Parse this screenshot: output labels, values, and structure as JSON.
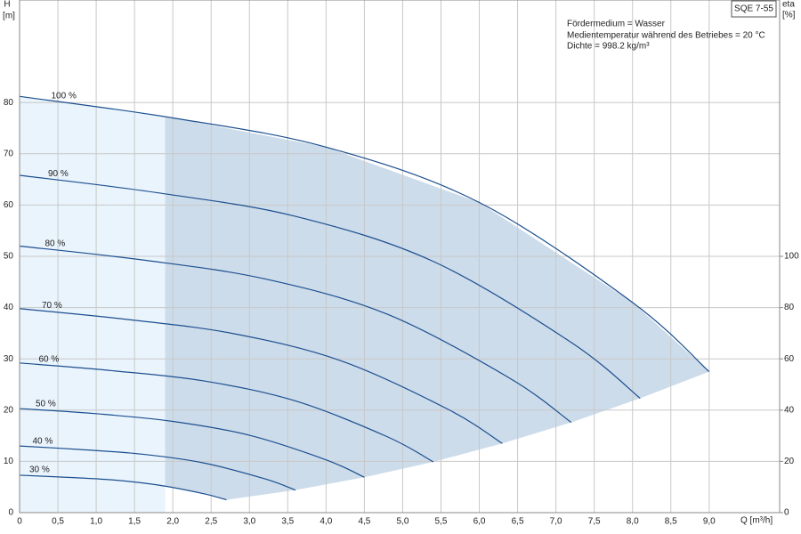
{
  "chart_data": {
    "type": "line",
    "title": "SQE 7-55",
    "y_label": "H",
    "y_unit": "[m]",
    "y2_label": "eta",
    "y2_unit": "[%]",
    "x_label": "Q [m³/h]",
    "annotations": [
      "Fördermedium = Wasser",
      "Medientemperatur während des Betriebes = 20 °C",
      "Dichte = 998.2 kg/m³"
    ],
    "xlim": [
      0,
      9.92
    ],
    "ylim": [
      0,
      100
    ],
    "y2lim": [
      0,
      200
    ],
    "xticks": [
      0,
      {
        "value": 0.5,
        "label": "0,5"
      },
      {
        "value": 1.0,
        "label": "1,0"
      },
      {
        "value": 1.5,
        "label": "1,5"
      },
      {
        "value": 2.0,
        "label": "2,0"
      },
      {
        "value": 2.5,
        "label": "2,5"
      },
      {
        "value": 3.0,
        "label": "3,0"
      },
      {
        "value": 3.5,
        "label": "3,5"
      },
      {
        "value": 4.0,
        "label": "4,0"
      },
      {
        "value": 4.5,
        "label": "4,5"
      },
      {
        "value": 5.0,
        "label": "5,0"
      },
      {
        "value": 5.5,
        "label": "5,5"
      },
      {
        "value": 6.0,
        "label": "6,0"
      },
      {
        "value": 6.5,
        "label": "6,5"
      },
      {
        "value": 7.0,
        "label": "7,0"
      },
      {
        "value": 7.5,
        "label": "7,5"
      },
      {
        "value": 8.0,
        "label": "8,0"
      },
      {
        "value": 8.5,
        "label": "8,5"
      },
      {
        "value": 9.0,
        "label": "9,0"
      }
    ],
    "yticks": [
      0,
      10,
      20,
      30,
      40,
      50,
      60,
      70,
      80
    ],
    "y2ticks": [
      0,
      20,
      40,
      60,
      80,
      100
    ],
    "grid": true,
    "recommended_min_q": 1.9,
    "fill_colors": [
      "#eaf4fc",
      "#cddcea"
    ],
    "series": [
      {
        "name": "100 %",
        "color": "#1c4f8f",
        "x": [
          0,
          2,
          4,
          6,
          8,
          9
        ],
        "values": [
          81.2,
          77.0,
          71.3,
          60.5,
          41.0,
          27.5
        ]
      },
      {
        "name": "90 %",
        "color": "#1c4f8f",
        "x": [
          0,
          1.8,
          3.6,
          5.4,
          7.2,
          8.1
        ],
        "values": [
          65.8,
          62.4,
          57.8,
          49.0,
          33.2,
          22.3
        ]
      },
      {
        "name": "80 %",
        "color": "#1c4f8f",
        "x": [
          0,
          1.6,
          3.2,
          4.8,
          6.4,
          7.2
        ],
        "values": [
          52.0,
          49.3,
          45.6,
          38.7,
          26.2,
          17.6
        ]
      },
      {
        "name": "70 %",
        "color": "#1c4f8f",
        "x": [
          0,
          1.4,
          2.8,
          4.2,
          5.6,
          6.3
        ],
        "values": [
          39.8,
          37.7,
          34.9,
          29.6,
          20.1,
          13.5
        ]
      },
      {
        "name": "60 %",
        "color": "#1c4f8f",
        "x": [
          0,
          1.2,
          2.4,
          3.6,
          4.8,
          5.4
        ],
        "values": [
          29.2,
          27.7,
          25.7,
          21.8,
          14.8,
          9.9
        ]
      },
      {
        "name": "50 %",
        "color": "#1c4f8f",
        "x": [
          0,
          1.0,
          2.0,
          3.0,
          4.0,
          4.5
        ],
        "values": [
          20.3,
          19.3,
          17.8,
          15.1,
          10.3,
          6.9
        ]
      },
      {
        "name": "40 %",
        "color": "#1c4f8f",
        "x": [
          0,
          0.8,
          1.6,
          2.4,
          3.2,
          3.6
        ],
        "values": [
          13.0,
          12.3,
          11.4,
          9.7,
          6.6,
          4.4
        ]
      },
      {
        "name": "30 %",
        "color": "#1c4f8f",
        "x": [
          0,
          0.6,
          1.2,
          1.8,
          2.4,
          2.7
        ],
        "values": [
          7.3,
          6.9,
          6.4,
          5.4,
          3.7,
          2.5
        ]
      }
    ]
  }
}
